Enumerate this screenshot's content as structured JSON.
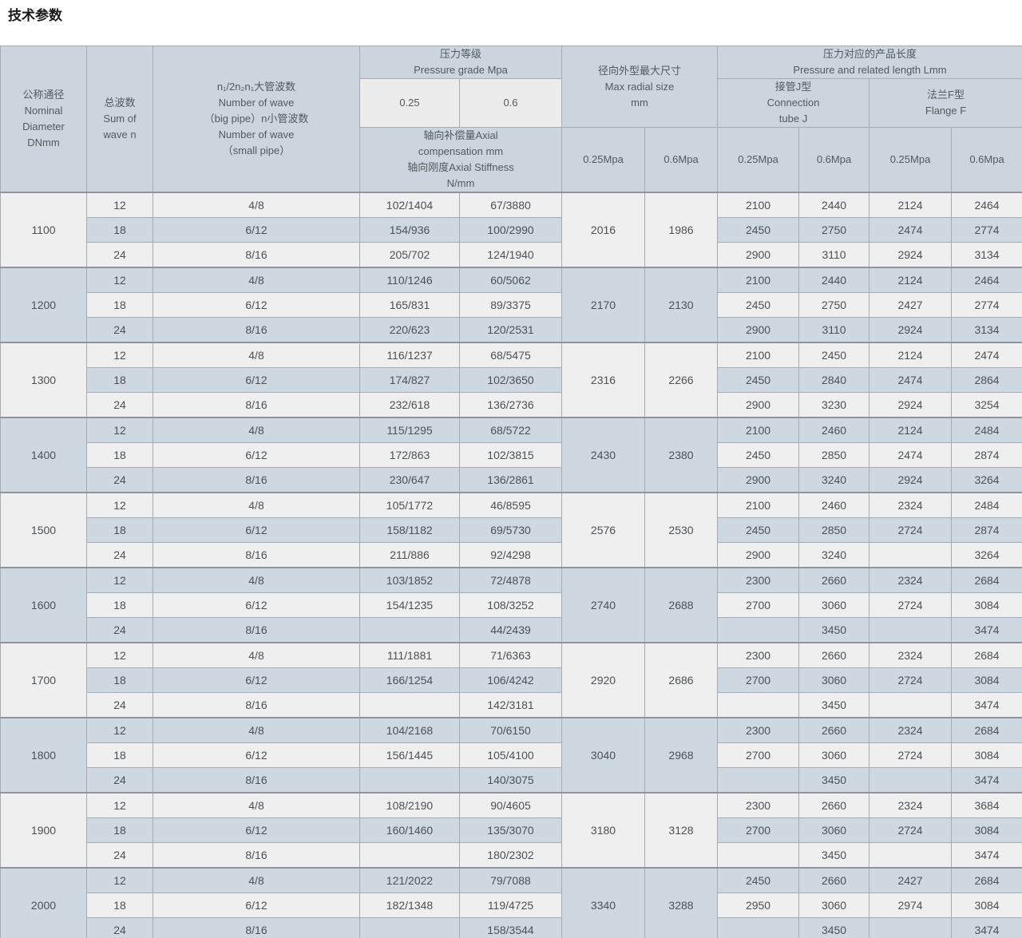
{
  "page_title": "技术参数",
  "colors": {
    "header_bg": "#ccd5dd",
    "subheader_bg": "#ececec",
    "stripe_light": "#efefef",
    "stripe_dark": "#cdd8e0",
    "border": "#a6abb0",
    "border_strong": "#8e9499"
  },
  "table": {
    "header": {
      "nominal_diameter": "公称通径\nNominal\nDiameter\nDNmm",
      "sum_of_waves": "总波数\nSum of\nwave n",
      "wave_numbers": "n₁/2n₂n₁大管波数\nNumber of wave\n（big pipe）n小管波数\nNumber of wave\n（small pipe）",
      "pressure_grade": "压力等级\nPressure grade Mpa",
      "pressure_025": "0.25",
      "pressure_06": "0.6",
      "axial_compensation": "轴向补偿量Axial\ncompensation mm\n轴向刚度Axial Stiffness\nN/mm",
      "max_radial_size": "径向外型最大尺寸\nMax radial size\nmm",
      "product_length": "压力对应的产品长度\nPressure and related length Lmm",
      "connection_tube_j": "接管J型\nConnection\ntube J",
      "flange_f": "法兰F型\nFlange F",
      "radial_025mpa": "0.25Mpa",
      "radial_06mpa": "0.6Mpa",
      "j_025mpa": "0.25Mpa",
      "j_06mpa": "0.6Mpa",
      "f_025mpa": "0.25Mpa",
      "f_06mpa": "0.6Mpa"
    },
    "groups": [
      {
        "dn": "1100",
        "r025": "2016",
        "r06": "1986",
        "rows": [
          {
            "waves": "12",
            "pipes": "4/8",
            "a025": "102/1404",
            "a06": "67/3880",
            "j025": "2100",
            "j06": "2440",
            "f025": "2124",
            "f06": "2464"
          },
          {
            "waves": "18",
            "pipes": "6/12",
            "a025": "154/936",
            "a06": "100/2990",
            "j025": "2450",
            "j06": "2750",
            "f025": "2474",
            "f06": "2774"
          },
          {
            "waves": "24",
            "pipes": "8/16",
            "a025": "205/702",
            "a06": "124/1940",
            "j025": "2900",
            "j06": "3110",
            "f025": "2924",
            "f06": "3134"
          }
        ]
      },
      {
        "dn": "1200",
        "r025": "2170",
        "r06": "2130",
        "rows": [
          {
            "waves": "12",
            "pipes": "4/8",
            "a025": "110/1246",
            "a06": "60/5062",
            "j025": "2100",
            "j06": "2440",
            "f025": "2124",
            "f06": "2464"
          },
          {
            "waves": "18",
            "pipes": "6/12",
            "a025": "165/831",
            "a06": "89/3375",
            "j025": "2450",
            "j06": "2750",
            "f025": "2427",
            "f06": "2774"
          },
          {
            "waves": "24",
            "pipes": "8/16",
            "a025": "220/623",
            "a06": "120/2531",
            "j025": "2900",
            "j06": "3110",
            "f025": "2924",
            "f06": "3134"
          }
        ]
      },
      {
        "dn": "1300",
        "r025": "2316",
        "r06": "2266",
        "rows": [
          {
            "waves": "12",
            "pipes": "4/8",
            "a025": "116/1237",
            "a06": "68/5475",
            "j025": "2100",
            "j06": "2450",
            "f025": "2124",
            "f06": "2474"
          },
          {
            "waves": "18",
            "pipes": "6/12",
            "a025": "174/827",
            "a06": "102/3650",
            "j025": "2450",
            "j06": "2840",
            "f025": "2474",
            "f06": "2864"
          },
          {
            "waves": "24",
            "pipes": "8/16",
            "a025": "232/618",
            "a06": "136/2736",
            "j025": "2900",
            "j06": "3230",
            "f025": "2924",
            "f06": "3254"
          }
        ]
      },
      {
        "dn": "1400",
        "r025": "2430",
        "r06": "2380",
        "rows": [
          {
            "waves": "12",
            "pipes": "4/8",
            "a025": "115/1295",
            "a06": "68/5722",
            "j025": "2100",
            "j06": "2460",
            "f025": "2124",
            "f06": "2484"
          },
          {
            "waves": "18",
            "pipes": "6/12",
            "a025": "172/863",
            "a06": "102/3815",
            "j025": "2450",
            "j06": "2850",
            "f025": "2474",
            "f06": "2874"
          },
          {
            "waves": "24",
            "pipes": "8/16",
            "a025": "230/647",
            "a06": "136/2861",
            "j025": "2900",
            "j06": "3240",
            "f025": "2924",
            "f06": "3264"
          }
        ]
      },
      {
        "dn": "1500",
        "r025": "2576",
        "r06": "2530",
        "rows": [
          {
            "waves": "12",
            "pipes": "4/8",
            "a025": "105/1772",
            "a06": "46/8595",
            "j025": "2100",
            "j06": "2460",
            "f025": "2324",
            "f06": "2484"
          },
          {
            "waves": "18",
            "pipes": "6/12",
            "a025": "158/1182",
            "a06": "69/5730",
            "j025": "2450",
            "j06": "2850",
            "f025": "2724",
            "f06": "2874"
          },
          {
            "waves": "24",
            "pipes": "8/16",
            "a025": "211/886",
            "a06": "92/4298",
            "j025": "2900",
            "j06": "3240",
            "f025": "",
            "f06": "3264"
          }
        ]
      },
      {
        "dn": "1600",
        "r025": "2740",
        "r06": "2688",
        "rows": [
          {
            "waves": "12",
            "pipes": "4/8",
            "a025": "103/1852",
            "a06": "72/4878",
            "j025": "2300",
            "j06": "2660",
            "f025": "2324",
            "f06": "2684"
          },
          {
            "waves": "18",
            "pipes": "6/12",
            "a025": "154/1235",
            "a06": "108/3252",
            "j025": "2700",
            "j06": "3060",
            "f025": "2724",
            "f06": "3084"
          },
          {
            "waves": "24",
            "pipes": "8/16",
            "a025": "",
            "a06": "44/2439",
            "j025": "",
            "j06": "3450",
            "f025": "",
            "f06": "3474"
          }
        ]
      },
      {
        "dn": "1700",
        "r025": "2920",
        "r06": "2686",
        "rows": [
          {
            "waves": "12",
            "pipes": "4/8",
            "a025": "111/1881",
            "a06": "71/6363",
            "j025": "2300",
            "j06": "2660",
            "f025": "2324",
            "f06": "2684"
          },
          {
            "waves": "18",
            "pipes": "6/12",
            "a025": "166/1254",
            "a06": "106/4242",
            "j025": "2700",
            "j06": "3060",
            "f025": "2724",
            "f06": "3084"
          },
          {
            "waves": "24",
            "pipes": "8/16",
            "a025": "",
            "a06": "142/3181",
            "j025": "",
            "j06": "3450",
            "f025": "",
            "f06": "3474"
          }
        ]
      },
      {
        "dn": "1800",
        "r025": "3040",
        "r06": "2968",
        "rows": [
          {
            "waves": "12",
            "pipes": "4/8",
            "a025": "104/2168",
            "a06": "70/6150",
            "j025": "2300",
            "j06": "2660",
            "f025": "2324",
            "f06": "2684"
          },
          {
            "waves": "18",
            "pipes": "6/12",
            "a025": "156/1445",
            "a06": "105/4100",
            "j025": "2700",
            "j06": "3060",
            "f025": "2724",
            "f06": "3084"
          },
          {
            "waves": "24",
            "pipes": "8/16",
            "a025": "",
            "a06": "140/3075",
            "j025": "",
            "j06": "3450",
            "f025": "",
            "f06": "3474"
          }
        ]
      },
      {
        "dn": "1900",
        "r025": "3180",
        "r06": "3128",
        "rows": [
          {
            "waves": "12",
            "pipes": "4/8",
            "a025": "108/2190",
            "a06": "90/4605",
            "j025": "2300",
            "j06": "2660",
            "f025": "2324",
            "f06": "3684"
          },
          {
            "waves": "18",
            "pipes": "6/12",
            "a025": "160/1460",
            "a06": "135/3070",
            "j025": "2700",
            "j06": "3060",
            "f025": "2724",
            "f06": "3084"
          },
          {
            "waves": "24",
            "pipes": "8/16",
            "a025": "",
            "a06": "180/2302",
            "j025": "",
            "j06": "3450",
            "f025": "",
            "f06": "3474"
          }
        ]
      },
      {
        "dn": "2000",
        "r025": "3340",
        "r06": "3288",
        "rows": [
          {
            "waves": "12",
            "pipes": "4/8",
            "a025": "121/2022",
            "a06": "79/7088",
            "j025": "2450",
            "j06": "2660",
            "f025": "2427",
            "f06": "2684"
          },
          {
            "waves": "18",
            "pipes": "6/12",
            "a025": "182/1348",
            "a06": "119/4725",
            "j025": "2950",
            "j06": "3060",
            "f025": "2974",
            "f06": "3084"
          },
          {
            "waves": "24",
            "pipes": "8/16",
            "a025": "",
            "a06": "158/3544",
            "j025": "",
            "j06": "3450",
            "f025": "",
            "f06": "3474"
          }
        ]
      }
    ]
  }
}
